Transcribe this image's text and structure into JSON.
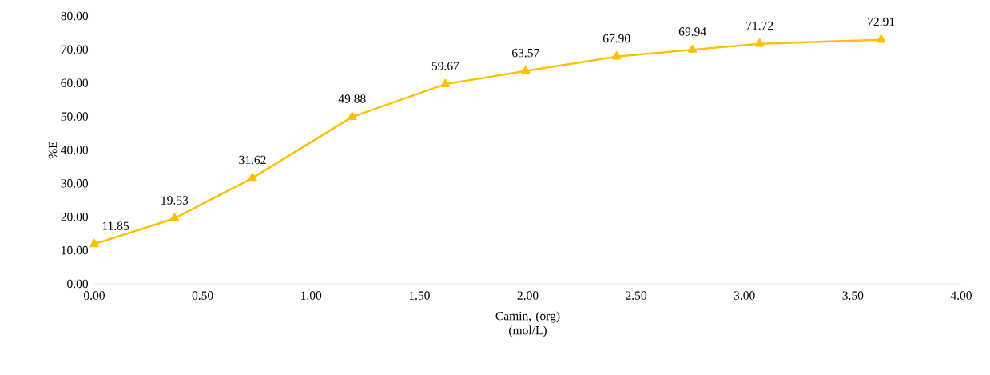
{
  "chart_data": {
    "type": "line",
    "xlabel": "Camin, (org) (mol/L)",
    "ylabel": "%E",
    "x": [
      0,
      0.37,
      0.73,
      1.19,
      1.62,
      1.99,
      2.41,
      2.76,
      3.07,
      3.63
    ],
    "series": [
      {
        "color": "#ffc000",
        "values": [
          11.85,
          19.53,
          31.62,
          49.88,
          59.67,
          63.57,
          67.9,
          69.94,
          71.72,
          72.91
        ]
      }
    ],
    "value_labels": [
      "11.85",
      "19.53",
      "31.62",
      "49.88",
      "59.67",
      "63.57",
      "67.90",
      "69.94",
      "71.72",
      "72.91"
    ],
    "marker": "triangle",
    "line_style": "solid",
    "xlim": [
      0,
      4
    ],
    "ylim": [
      0,
      80
    ],
    "xticks": [
      {
        "value": 0,
        "label": "0.00"
      },
      {
        "value": 0.5,
        "label": "0.50"
      },
      {
        "value": 1,
        "label": "1.00"
      },
      {
        "value": 1.5,
        "label": "1.50"
      },
      {
        "value": 2,
        "label": "2.00"
      },
      {
        "value": 2.5,
        "label": "2.50"
      },
      {
        "value": 3,
        "label": "3.00"
      },
      {
        "value": 3.5,
        "label": "3.50"
      },
      {
        "value": 4,
        "label": "4.00"
      }
    ],
    "yticks": [
      {
        "value": 0,
        "label": "0.00"
      },
      {
        "value": 10,
        "label": "10.00"
      },
      {
        "value": 20,
        "label": "20.00"
      },
      {
        "value": 30,
        "label": "30.00"
      },
      {
        "value": 40,
        "label": "40.00"
      },
      {
        "value": 50,
        "label": "50.00"
      },
      {
        "value": 60,
        "label": "60.00"
      },
      {
        "value": 70,
        "label": "70.00"
      },
      {
        "value": 80,
        "label": "80.00"
      }
    ]
  }
}
